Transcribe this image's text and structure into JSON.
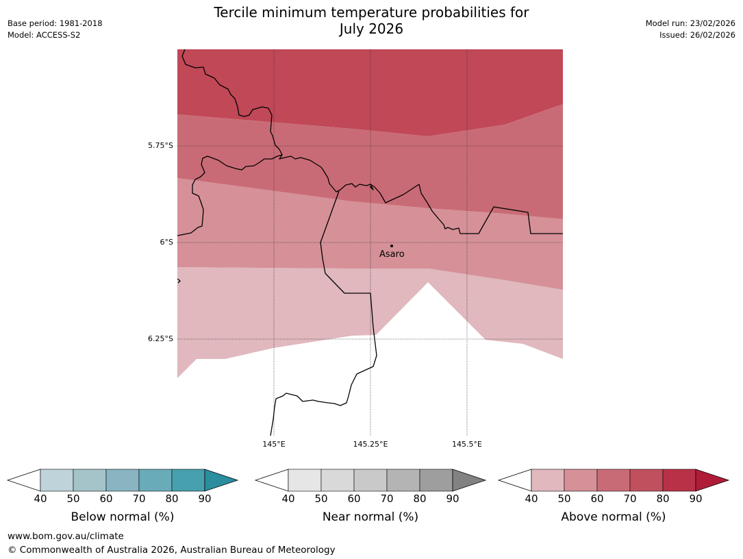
{
  "header": {
    "base_period": "Base period: 1981-2018",
    "model": "Model: ACCESS-S2",
    "title_line1": "Tercile minimum temperature probabilities for",
    "title_line2": "July 2026",
    "model_run": "Model run: 23/02/2026",
    "issued": "Issued: 26/02/2026"
  },
  "map": {
    "lat_labels": [
      "5.75°S",
      "6°S",
      "6.25°S"
    ],
    "lon_labels": [
      "145°E",
      "145.25°E",
      "145.5°E"
    ],
    "place": "Asaro",
    "colors": {
      "above_40_50": "#e0b8bd",
      "above_50_60": "#d59098",
      "above_60_70": "#c96b76",
      "above_70_80": "#c04857"
    }
  },
  "colorbars": [
    {
      "name": "below",
      "label": "Below normal (%)",
      "ticks": [
        "40",
        "50",
        "60",
        "70",
        "80",
        "90"
      ],
      "colors": [
        "#bed4da",
        "#a4c4ca",
        "#88b5c1",
        "#6aabb9",
        "#47a0ae",
        "#2a8e9f"
      ]
    },
    {
      "name": "near",
      "label": "Near normal (%)",
      "ticks": [
        "40",
        "50",
        "60",
        "70",
        "80",
        "90"
      ],
      "colors": [
        "#e6e6e6",
        "#d9d9d9",
        "#c9c9c9",
        "#b4b4b4",
        "#9e9e9e",
        "#828282"
      ]
    },
    {
      "name": "above",
      "label": "Above normal (%)",
      "ticks": [
        "40",
        "50",
        "60",
        "70",
        "80",
        "90"
      ],
      "colors": [
        "#e0b8bd",
        "#d59098",
        "#c96b76",
        "#c1505e",
        "#b93146",
        "#b01c38"
      ]
    }
  ],
  "footer": {
    "url": "www.bom.gov.au/climate",
    "copyright": "© Commonwealth of Australia 2026, Australian Bureau of Meteorology"
  }
}
